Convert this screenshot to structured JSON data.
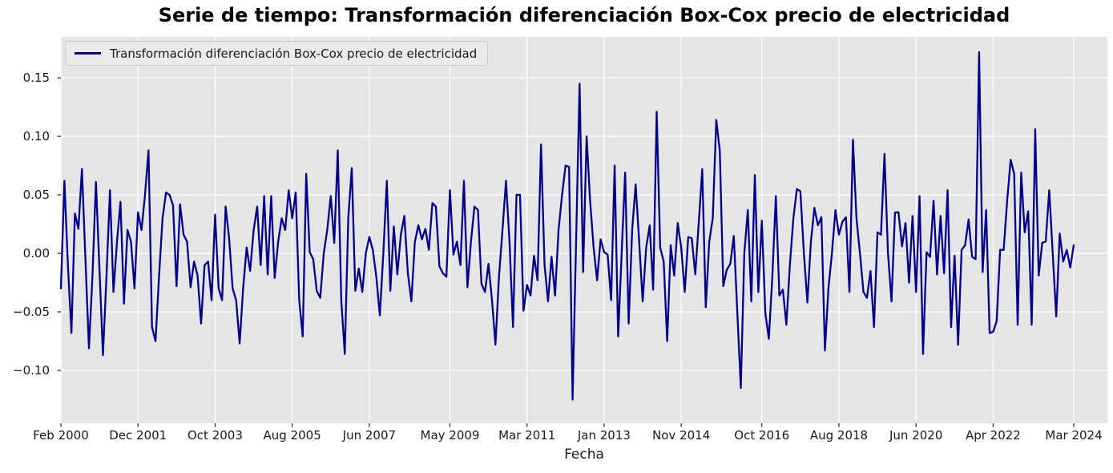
{
  "chart_data": {
    "type": "line",
    "title": "Serie de tiempo: Transformación diferenciación Box-Cox precio de electricidad",
    "xlabel": "Fecha",
    "ylabel": "",
    "legend_position": "upper left",
    "grid": true,
    "plot_background": "#e5e5e5",
    "grid_color": "#ffffff",
    "x_start": "Feb 2000",
    "x_end": "Mar 2024",
    "x_frequency": "monthly",
    "ylim": [
      -0.1452,
      0.185
    ],
    "xlim_months": [
      0,
      298.6
    ],
    "y_ticks": [
      {
        "label": "0.15",
        "value": 0.15
      },
      {
        "label": "0.10",
        "value": 0.1
      },
      {
        "label": "0.05",
        "value": 0.05
      },
      {
        "label": "0.00",
        "value": 0.0
      },
      {
        "label": "−0.05",
        "value": -0.05
      },
      {
        "label": "−0.10",
        "value": -0.1
      }
    ],
    "x_ticks": [
      {
        "label": "Feb 2000",
        "month": 0
      },
      {
        "label": "Dec 2001",
        "month": 22
      },
      {
        "label": "Oct 2003",
        "month": 44
      },
      {
        "label": "Aug 2005",
        "month": 66
      },
      {
        "label": "Jun 2007",
        "month": 88
      },
      {
        "label": "May 2009",
        "month": 111
      },
      {
        "label": "Mar 2011",
        "month": 133
      },
      {
        "label": "Jan 2013",
        "month": 155
      },
      {
        "label": "Nov 2014",
        "month": 177
      },
      {
        "label": "Oct 2016",
        "month": 200
      },
      {
        "label": "Aug 2018",
        "month": 222
      },
      {
        "label": "Jun 2020",
        "month": 244
      },
      {
        "label": "Apr 2022",
        "month": 266
      },
      {
        "label": "Mar 2024",
        "month": 289
      }
    ],
    "series": [
      {
        "name": "Transformación diferenciación Box-Cox precio de electricidad",
        "color": "#00008b",
        "values": [
          -0.03,
          0.062,
          -0.01,
          -0.068,
          0.034,
          0.021,
          0.072,
          -0.005,
          -0.081,
          -0.02,
          0.061,
          -0.013,
          -0.087,
          -0.02,
          0.054,
          -0.033,
          0.01,
          0.044,
          -0.043,
          0.02,
          0.01,
          -0.03,
          0.035,
          0.02,
          0.05,
          0.088,
          -0.063,
          -0.075,
          -0.02,
          0.03,
          0.052,
          0.05,
          0.041,
          -0.028,
          0.042,
          0.016,
          0.01,
          -0.029,
          -0.007,
          -0.019,
          -0.06,
          -0.01,
          -0.007,
          -0.04,
          0.033,
          -0.03,
          -0.04,
          0.04,
          0.013,
          -0.03,
          -0.04,
          -0.077,
          -0.03,
          0.005,
          -0.015,
          0.02,
          0.04,
          -0.01,
          0.049,
          -0.018,
          0.049,
          -0.021,
          0.01,
          0.03,
          0.02,
          0.054,
          0.03,
          0.052,
          -0.04,
          -0.071,
          0.068,
          0.001,
          -0.005,
          -0.032,
          -0.038,
          0.0,
          0.02,
          0.049,
          0.009,
          0.088,
          -0.04,
          -0.086,
          0.03,
          0.073,
          -0.032,
          -0.013,
          -0.033,
          0.0,
          0.014,
          0.003,
          -0.02,
          -0.053,
          0.0,
          0.062,
          -0.032,
          0.023,
          -0.018,
          0.016,
          0.032,
          -0.017,
          -0.041,
          0.01,
          0.024,
          0.012,
          0.021,
          0.003,
          0.043,
          0.04,
          -0.011,
          -0.017,
          -0.02,
          0.054,
          -0.001,
          0.01,
          -0.01,
          0.062,
          -0.029,
          0.01,
          0.04,
          0.037,
          -0.026,
          -0.033,
          -0.009,
          -0.04,
          -0.078,
          -0.02,
          0.02,
          0.062,
          0.01,
          -0.063,
          0.05,
          0.05,
          -0.049,
          -0.027,
          -0.036,
          -0.002,
          -0.023,
          0.093,
          -0.01,
          -0.041,
          -0.003,
          -0.036,
          0.02,
          0.05,
          0.075,
          0.074,
          -0.125,
          0.01,
          0.145,
          -0.016,
          0.1,
          0.045,
          0.005,
          -0.023,
          0.012,
          0.001,
          -0.001,
          -0.04,
          0.075,
          -0.071,
          0.0,
          0.069,
          -0.06,
          0.02,
          0.059,
          0.01,
          -0.041,
          0.005,
          0.024,
          -0.031,
          0.121,
          0.005,
          -0.007,
          -0.075,
          0.007,
          -0.019,
          0.026,
          0.005,
          -0.033,
          0.014,
          0.013,
          -0.018,
          0.026,
          0.072,
          -0.046,
          0.01,
          0.03,
          0.114,
          0.088,
          -0.028,
          -0.014,
          -0.009,
          0.015,
          -0.05,
          -0.115,
          0.0,
          0.037,
          -0.041,
          0.067,
          -0.033,
          0.028,
          -0.051,
          -0.073,
          -0.02,
          0.049,
          -0.036,
          -0.031,
          -0.061,
          -0.01,
          0.03,
          0.055,
          0.053,
          0.0,
          -0.042,
          0.01,
          0.039,
          0.024,
          0.031,
          -0.083,
          -0.03,
          0.0,
          0.037,
          0.016,
          0.027,
          0.031,
          -0.033,
          0.097,
          0.03,
          0.0,
          -0.033,
          -0.038,
          -0.015,
          -0.063,
          0.018,
          0.016,
          0.085,
          0.0,
          -0.041,
          0.035,
          0.035,
          0.006,
          0.026,
          -0.025,
          0.032,
          -0.033,
          0.049,
          -0.086,
          0.001,
          -0.003,
          0.045,
          -0.018,
          0.032,
          -0.017,
          0.054,
          -0.063,
          -0.002,
          -0.078,
          0.003,
          0.007,
          0.029,
          -0.003,
          -0.005,
          0.172,
          -0.016,
          0.037,
          -0.068,
          -0.067,
          -0.058,
          0.003,
          0.003,
          0.045,
          0.08,
          0.068,
          -0.061,
          0.069,
          0.018,
          0.036,
          -0.061,
          0.106,
          -0.019,
          0.009,
          0.01,
          0.054,
          0.0,
          -0.054,
          0.017,
          -0.007,
          0.003,
          -0.012,
          0.007
        ]
      }
    ]
  }
}
